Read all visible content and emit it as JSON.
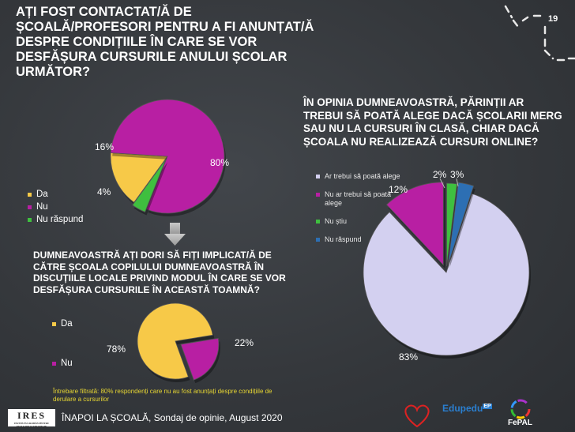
{
  "page_number": "19",
  "footer": {
    "logo_text": "IRES",
    "logo_subtext": "INSTITUTUL ROMÂN PENTRU EVALUARE ȘI STRATEGIE",
    "survey_title": "ÎNAPOI LA ȘCOALĂ, Sondaj de opinie, August 2020",
    "partner1": "Edupedu",
    "partner1_sup": "EP",
    "partner2": "FePAL"
  },
  "note": "Întrebare filtrată: 80% respondenți care nu au fost anunțați despre condițiile de derulare a cursurilor",
  "chart_data": [
    {
      "type": "pie",
      "title": "AȚI FOST CONTACTAT/Ă DE ȘCOALĂ/PROFESORI PENTRU A FI ANUNȚAT/Ă DESPRE CONDIȚIILE ÎN CARE SE VOR DESFĂȘURA CURSURILE ANULUI ȘCOLAR URMĂTOR?",
      "categories": [
        "Da",
        "Nu",
        "Nu răspund"
      ],
      "values": [
        16,
        80,
        4
      ],
      "labels": [
        "16%",
        "80%",
        "4%"
      ],
      "colors": [
        "#f7c948",
        "#b81fa3",
        "#3fbf3f"
      ],
      "legend_position": "left"
    },
    {
      "type": "pie",
      "title": "DUMNEAVOASTRĂ AȚI DORI SĂ FIȚI IMPLICAT/Ă DE CĂTRE ȘCOALA COPILULUI DUMNEAVOASTRĂ ÎN DISCUȚIILE LOCALE PRIVIND MODUL ÎN CARE SE VOR DESFĂȘURA CURSURILE ÎN ACEASTĂ TOAMNĂ?",
      "categories": [
        "Da",
        "Nu"
      ],
      "values": [
        78,
        22
      ],
      "labels": [
        "78%",
        "22%"
      ],
      "colors": [
        "#f7c948",
        "#b81fa3"
      ],
      "legend_position": "left"
    },
    {
      "type": "pie",
      "title": "ÎN OPINIA DUMNEAVOASTRĂ, PĂRINȚII AR TREBUI SĂ POATĂ ALEGE DACĂ ȘCOLARII MERG SAU NU LA CURSURI ÎN CLASĂ, CHIAR DACĂ ȘCOALA NU REALIZEAZĂ CURSURI ONLINE?",
      "categories": [
        "Ar trebui să poată alege",
        "Nu ar trebui să poată alege",
        "Nu știu",
        "Nu răspund"
      ],
      "values": [
        83,
        12,
        2,
        3
      ],
      "labels": [
        "83%",
        "12%",
        "2%",
        "3%"
      ],
      "colors": [
        "#d3d0f0",
        "#b81fa3",
        "#3fbf3f",
        "#2d6fb3"
      ],
      "legend_position": "left"
    }
  ]
}
